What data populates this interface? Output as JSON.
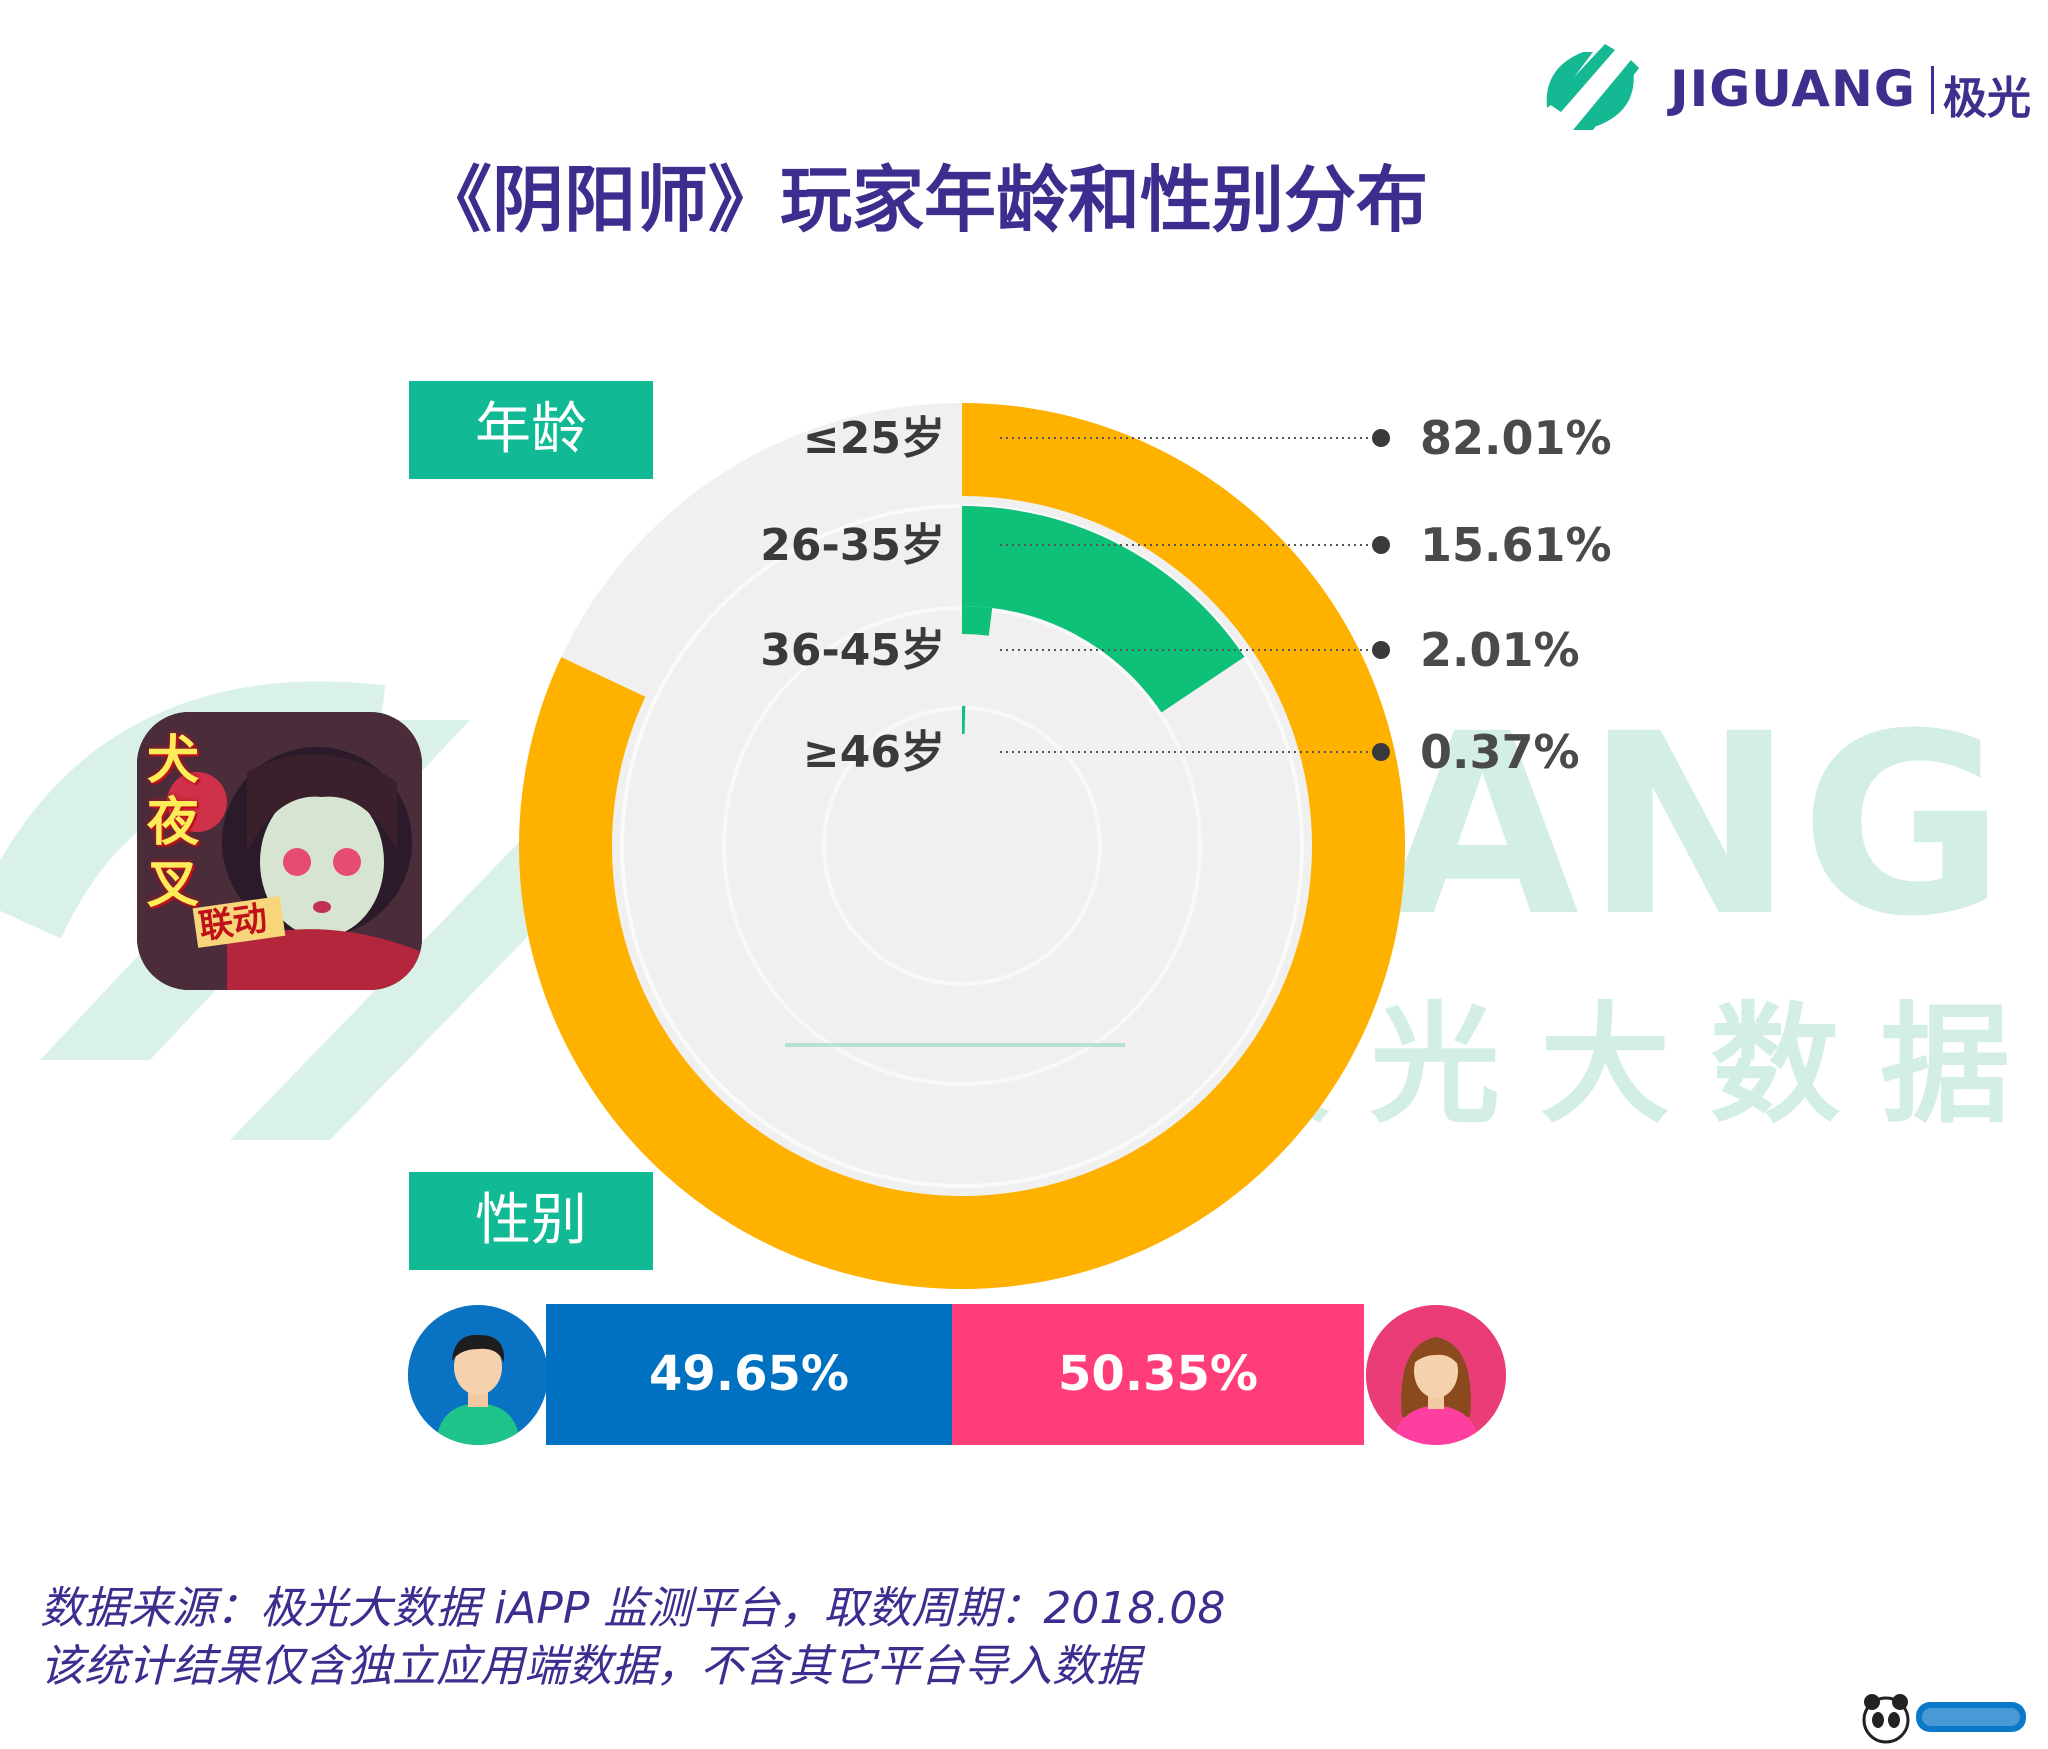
{
  "brand": {
    "name": "JIGUANG",
    "name_cn": "极光"
  },
  "title": "《阴阳师》玩家年龄和性别分布",
  "sections": {
    "age": "年龄",
    "gender": "性别"
  },
  "watermark": {
    "word": "JIGUANG",
    "cn": "极光大数据"
  },
  "app_icon": {
    "badge": "犬夜叉",
    "sub": "联动"
  },
  "chart_data": [
    {
      "type": "radial-bar",
      "categories": [
        "≤25岁",
        "26-35岁",
        "36-45岁",
        "≥46岁"
      ],
      "values": [
        82.01,
        15.61,
        2.01,
        0.37
      ],
      "value_labels": [
        "82.01%",
        "15.61%",
        "2.01%",
        "0.37%"
      ],
      "colors": [
        "#ffb100",
        "#0fc079",
        "#0fc079",
        "#0fc079"
      ],
      "track_color": "#f0f0f0",
      "max": 100
    },
    {
      "type": "bar",
      "stacked": true,
      "categories": [
        "男",
        "女"
      ],
      "values": [
        49.65,
        50.35
      ],
      "value_labels": [
        "49.65%",
        "50.35%"
      ],
      "colors": [
        "#0070c0",
        "#ff3d79"
      ]
    }
  ],
  "footer": {
    "line1": "数据来源：极光大数据 iAPP 监测平台，取数周期：2018.08",
    "line2": "该统计结果仅含独立应用端数据，不含其它平台导入数据"
  },
  "icons": {
    "brand": "jiguang-logo-icon",
    "male": "male-avatar-icon",
    "female": "female-avatar-icon",
    "corner": "panda-logo-icon"
  }
}
